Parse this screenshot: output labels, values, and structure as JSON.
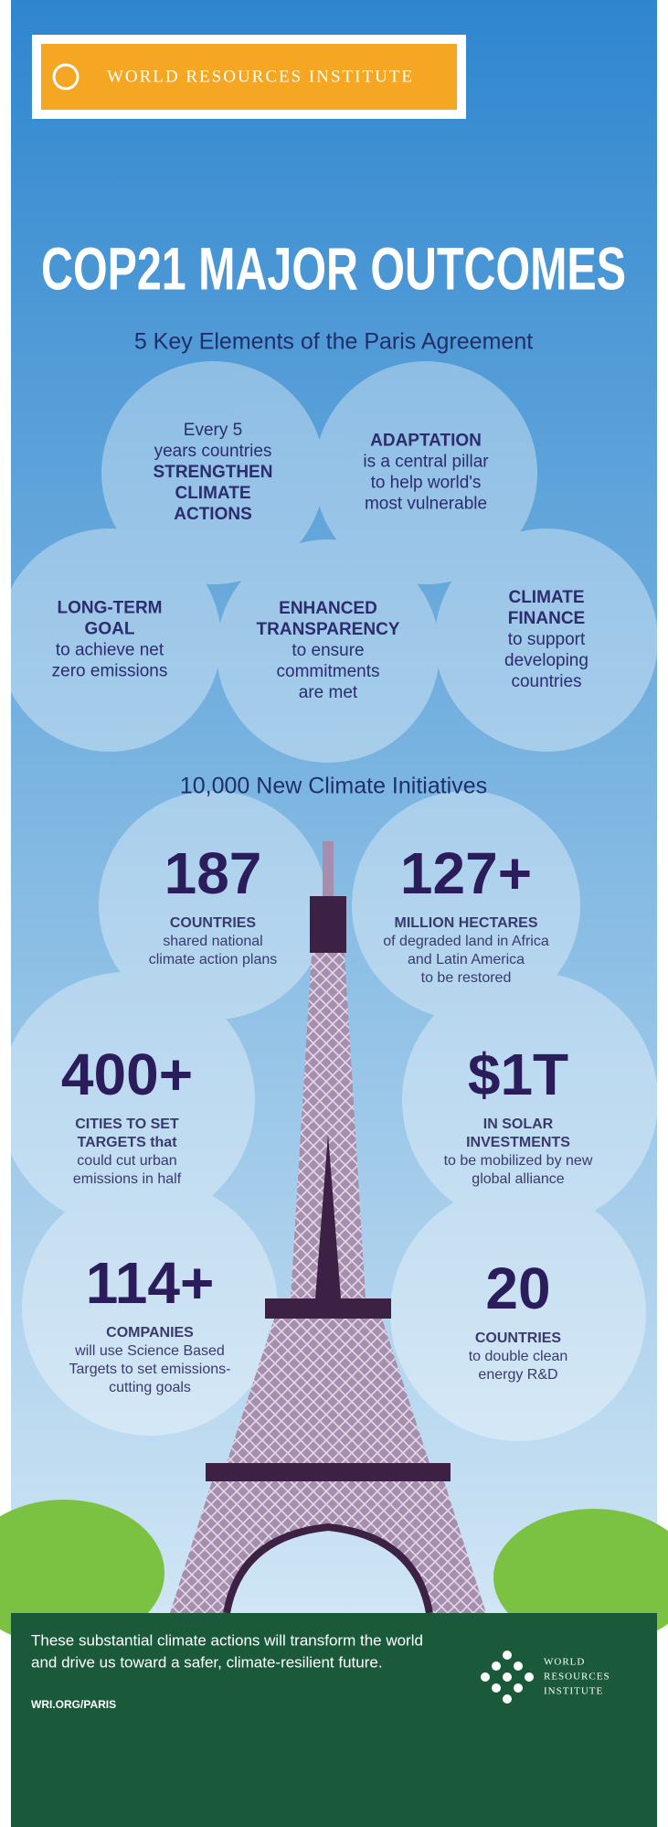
{
  "header": {
    "logo": "WORLD RESOURCES INSTITUTE",
    "title": "COP21 MAJOR OUTCOMES",
    "subtitle": "5 Key Elements of the Paris Agreement"
  },
  "elements": [
    {
      "lines": [
        {
          "text": "Every 5",
          "bold": false
        },
        {
          "text": "years countries",
          "bold": false
        },
        {
          "text": "STRENGTHEN",
          "bold": true
        },
        {
          "text": "CLIMATE",
          "bold": true
        },
        {
          "text": "ACTIONS",
          "bold": true
        }
      ]
    },
    {
      "lines": [
        {
          "text": "ADAPTATION",
          "bold": true
        },
        {
          "text": "is a central pillar",
          "bold": false
        },
        {
          "text": "to help world's",
          "bold": false
        },
        {
          "text": "most vulnerable",
          "bold": false
        }
      ]
    },
    {
      "lines": [
        {
          "text": "LONG-TERM",
          "bold": true
        },
        {
          "text": "GOAL",
          "bold": true
        },
        {
          "text": "to achieve net",
          "bold": false
        },
        {
          "text": "zero emissions",
          "bold": false
        }
      ]
    },
    {
      "lines": [
        {
          "text": "ENHANCED",
          "bold": true
        },
        {
          "text": "TRANSPARENCY",
          "bold": true
        },
        {
          "text": "to ensure",
          "bold": false
        },
        {
          "text": "commitments",
          "bold": false
        },
        {
          "text": "are met",
          "bold": false
        }
      ]
    },
    {
      "lines": [
        {
          "text": "CLIMATE",
          "bold": true
        },
        {
          "text": "FINANCE",
          "bold": true
        },
        {
          "text": "to support",
          "bold": false
        },
        {
          "text": "developing",
          "bold": false
        },
        {
          "text": "countries",
          "bold": false
        }
      ]
    }
  ],
  "initiatives": {
    "heading": "10,000 New Climate Initiatives",
    "stats": [
      {
        "number": "187",
        "lines": [
          {
            "text": "COUNTRIES",
            "bold": true
          },
          {
            "text": "shared national",
            "bold": false
          },
          {
            "text": "climate action plans",
            "bold": false
          }
        ]
      },
      {
        "number": "127+",
        "lines": [
          {
            "text": "MILLION HECTARES",
            "bold": true
          },
          {
            "text": "of degraded land in Africa",
            "bold": false
          },
          {
            "text": "and Latin America",
            "bold": false
          },
          {
            "text": "to be restored",
            "bold": false
          }
        ]
      },
      {
        "number": "400+",
        "lines": [
          {
            "text": "CITIES TO SET",
            "bold": true
          },
          {
            "text": "TARGETS that",
            "bold": true
          },
          {
            "text": "could cut urban",
            "bold": false
          },
          {
            "text": "emissions in half",
            "bold": false
          }
        ]
      },
      {
        "number": "$1T",
        "lines": [
          {
            "text": "IN SOLAR",
            "bold": true
          },
          {
            "text": "INVESTMENTS",
            "bold": true
          },
          {
            "text": "to be mobilized by new",
            "bold": false
          },
          {
            "text": "global alliance",
            "bold": false
          }
        ]
      },
      {
        "number": "114+",
        "lines": [
          {
            "text": "COMPANIES",
            "bold": true
          },
          {
            "text": "will use Science Based",
            "bold": false
          },
          {
            "text": "Targets to set emissions-",
            "bold": false
          },
          {
            "text": "cutting goals",
            "bold": false
          }
        ]
      },
      {
        "number": "20",
        "lines": [
          {
            "text": "COUNTRIES",
            "bold": true
          },
          {
            "text": "to double clean",
            "bold": false
          },
          {
            "text": "energy R&D",
            "bold": false
          }
        ]
      }
    ]
  },
  "footer": {
    "lines": [
      "These substantial climate actions will transform the world",
      "and drive us toward a safer, climate-resilient future."
    ],
    "url": "WRI.ORG/PARIS",
    "logo": [
      "WORLD",
      "RESOURCES",
      "INSTITUTE"
    ]
  }
}
